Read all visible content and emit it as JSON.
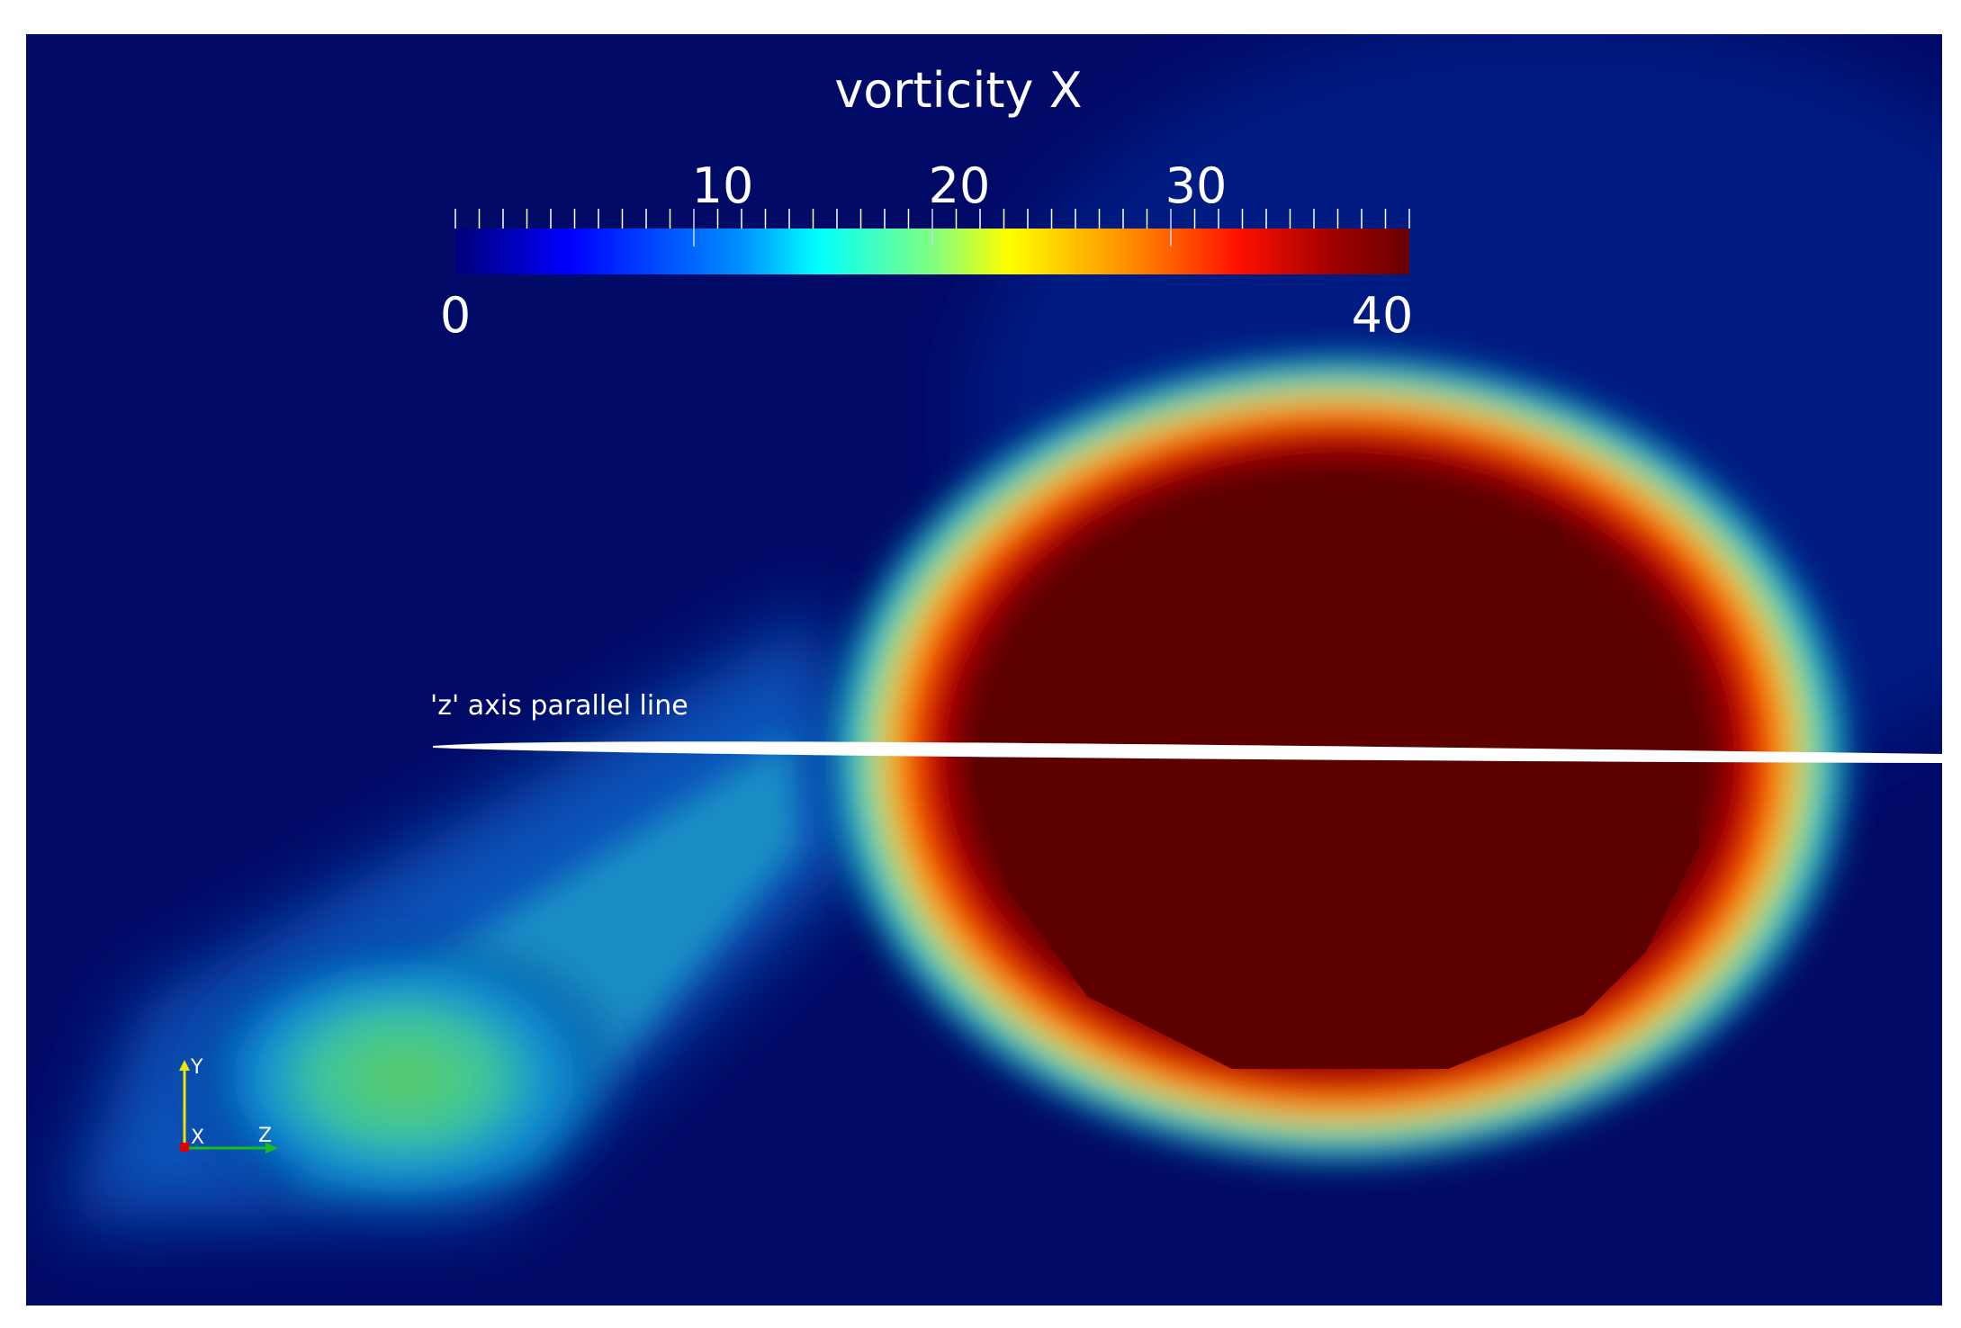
{
  "colorbar": {
    "title": "vorticity X",
    "min_label": "0",
    "max_label": "40",
    "tick_labels": [
      "10",
      "20",
      "30"
    ],
    "range": [
      0,
      40
    ],
    "colormap": "jet"
  },
  "annotation": {
    "line_label": "'z' axis parallel line"
  },
  "orientation_axes": {
    "y_label": "Y",
    "x_label": "X",
    "z_label": "Z",
    "colors": {
      "y": "#f2e400",
      "x": "#e00000",
      "z": "#16c016"
    }
  },
  "colors": {
    "background": "#010a66",
    "frame": "#ffffff",
    "core": "#5c0000",
    "line": "#ffffff"
  }
}
